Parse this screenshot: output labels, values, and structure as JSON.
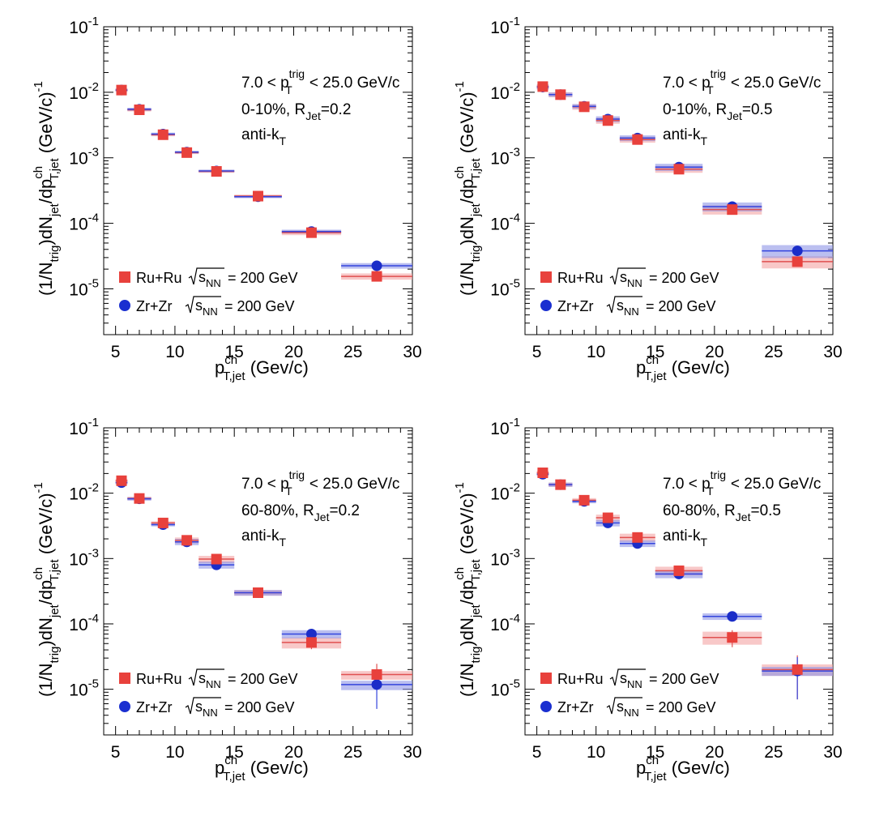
{
  "legend_entries": [
    {
      "label": "Ru+Ru",
      "energy": "= 200 GeV",
      "color": "#e8413c",
      "marker": "square"
    },
    {
      "label": "Zr+Zr",
      "energy": "= 200 GeV",
      "color": "#1a2fd0",
      "marker": "circle"
    }
  ],
  "colors": {
    "ru_marker": "#e8413c",
    "ru_band": "#f4a3a3",
    "ru_line": "#e05050",
    "zr_marker": "#1b2dc8",
    "zr_band": "#8d95e6",
    "zr_line": "#3344dd"
  },
  "chart_data": [
    {
      "type": "scatter",
      "xlabel": "p_T,jet^ch (Gev/c)",
      "ylabel": "(1/N_trig)dN_jet/dp_T,jet^ch (GeV/c)^-1",
      "xlim": [
        4,
        30
      ],
      "ylim": [
        2e-06,
        0.1
      ],
      "yscale": "log",
      "annotations": [
        "7.0 < p_T^trig < 25.0 GeV/c",
        "0-10%, R_Jet=0.2",
        "anti-k_T"
      ],
      "legend_placement": "bottom-left",
      "series": [
        {
          "name": "Ru+Ru",
          "x": [
            5.5,
            7.0,
            9.0,
            11.0,
            13.5,
            17.0,
            21.5,
            27.0
          ],
          "y": [
            0.0108,
            0.0054,
            0.00225,
            0.0012,
            0.00062,
            0.00026,
            7.2e-05,
            1.55e-05
          ],
          "x_bins": [
            [
              5,
              6
            ],
            [
              6,
              8
            ],
            [
              8,
              10
            ],
            [
              10,
              12
            ],
            [
              12,
              15
            ],
            [
              15,
              19
            ],
            [
              19,
              24
            ],
            [
              24,
              30
            ]
          ],
          "band_lo": [
            0.0102,
            0.0051,
            0.00213,
            0.00114,
            0.00059,
            0.000246,
            6.6e-05,
            1.38e-05
          ],
          "band_hi": [
            0.0114,
            0.0057,
            0.00237,
            0.00126,
            0.00065,
            0.000274,
            7.8e-05,
            1.72e-05
          ],
          "err_lo": [],
          "err_hi": []
        },
        {
          "name": "Zr+Zr",
          "x": [
            5.5,
            7.0,
            9.0,
            11.0,
            13.5,
            17.0,
            21.5,
            27.0
          ],
          "y": [
            0.0108,
            0.0055,
            0.0023,
            0.00122,
            0.00063,
            0.000255,
            7.5e-05,
            2.25e-05
          ],
          "x_bins": [
            [
              5,
              6
            ],
            [
              6,
              8
            ],
            [
              8,
              10
            ],
            [
              10,
              12
            ],
            [
              12,
              15
            ],
            [
              15,
              19
            ],
            [
              19,
              24
            ],
            [
              24,
              30
            ]
          ],
          "band_lo": [
            0.0102,
            0.0052,
            0.00218,
            0.00116,
            0.0006,
            0.000242,
            7e-05,
            2.03e-05
          ],
          "band_hi": [
            0.0114,
            0.0058,
            0.00242,
            0.00128,
            0.00066,
            0.000268,
            8e-05,
            2.47e-05
          ],
          "err_lo": [],
          "err_hi": []
        }
      ]
    },
    {
      "type": "scatter",
      "xlabel": "p_T,jet^ch (Gev/c)",
      "ylabel": "(1/N_trig)dN_jet/dp_T,jet^ch (GeV/c)^-1",
      "xlim": [
        4,
        30
      ],
      "ylim": [
        2e-06,
        0.1
      ],
      "yscale": "log",
      "annotations": [
        "7.0 < p_T^trig < 25.0 GeV/c",
        "0-10%, R_Jet=0.5",
        "anti-k_T"
      ],
      "legend_placement": "bottom-left",
      "series": [
        {
          "name": "Ru+Ru",
          "x": [
            5.5,
            7.0,
            9.0,
            11.0,
            13.5,
            17.0,
            21.5,
            27.0
          ],
          "y": [
            0.0122,
            0.0092,
            0.006,
            0.0037,
            0.0019,
            0.00067,
            0.000162,
            2.6e-05
          ],
          "x_bins": [
            [
              5,
              6
            ],
            [
              6,
              8
            ],
            [
              8,
              10
            ],
            [
              10,
              12
            ],
            [
              12,
              15
            ],
            [
              15,
              19
            ],
            [
              19,
              24
            ],
            [
              24,
              30
            ]
          ],
          "band_lo": [
            0.0112,
            0.0084,
            0.0054,
            0.0033,
            0.0017,
            0.00059,
            0.000136,
            2.05e-05
          ],
          "band_hi": [
            0.0132,
            0.01,
            0.0066,
            0.0041,
            0.0021,
            0.00075,
            0.000188,
            3.15e-05
          ],
          "err_lo": [],
          "err_hi": []
        },
        {
          "name": "Zr+Zr",
          "x": [
            5.5,
            7.0,
            9.0,
            11.0,
            13.5,
            17.0,
            21.5,
            27.0
          ],
          "y": [
            0.012,
            0.0092,
            0.0061,
            0.0039,
            0.002,
            0.00072,
            0.00018,
            3.8e-05
          ],
          "x_bins": [
            [
              5,
              6
            ],
            [
              6,
              8
            ],
            [
              8,
              10
            ],
            [
              10,
              12
            ],
            [
              12,
              15
            ],
            [
              15,
              19
            ],
            [
              19,
              24
            ],
            [
              24,
              30
            ]
          ],
          "band_lo": [
            0.011,
            0.0085,
            0.0056,
            0.0035,
            0.0018,
            0.00063,
            0.000152,
            2.95e-05
          ],
          "band_hi": [
            0.013,
            0.0099,
            0.0066,
            0.0043,
            0.0022,
            0.00081,
            0.000208,
            4.65e-05
          ],
          "err_lo": [],
          "err_hi": []
        }
      ]
    },
    {
      "type": "scatter",
      "xlabel": "p_T,jet^ch (Gev/c)",
      "ylabel": "(1/N_trig)dN_jet/dp_T,jet^ch (GeV/c)^-1",
      "xlim": [
        4,
        30
      ],
      "ylim": [
        2e-06,
        0.1
      ],
      "yscale": "log",
      "annotations": [
        "7.0 < p_T^trig < 25.0 GeV/c",
        "60-80%, R_Jet=0.2",
        "anti-k_T"
      ],
      "legend_placement": "bottom-left",
      "series": [
        {
          "name": "Ru+Ru",
          "x": [
            5.5,
            7.0,
            9.0,
            11.0,
            13.5,
            17.0,
            21.5,
            27.0
          ],
          "y": [
            0.0155,
            0.0083,
            0.0035,
            0.0019,
            0.00098,
            0.0003,
            5.2e-05,
            1.68e-05
          ],
          "x_bins": [
            [
              5,
              6
            ],
            [
              6,
              8
            ],
            [
              8,
              10
            ],
            [
              10,
              12
            ],
            [
              12,
              15
            ],
            [
              15,
              19
            ],
            [
              19,
              24
            ],
            [
              24,
              30
            ]
          ],
          "band_lo": [
            0.0145,
            0.0078,
            0.0033,
            0.0017,
            0.00085,
            0.00027,
            4.2e-05,
            1.4e-05
          ],
          "band_hi": [
            0.0165,
            0.0088,
            0.0037,
            0.0021,
            0.0011,
            0.00033,
            6.2e-05,
            1.9e-05
          ],
          "err_lo": [
            0.0149,
            0.008,
            0.0034,
            0.00182,
            0.00093,
            0.00029,
            4.1e-05,
            1.15e-05
          ],
          "err_hi": [
            0.0161,
            0.0086,
            0.0036,
            0.00198,
            0.00103,
            0.00031,
            6.3e-05,
            2.45e-05
          ]
        },
        {
          "name": "Zr+Zr",
          "x": [
            5.5,
            7.0,
            9.0,
            11.0,
            13.5,
            17.0,
            21.5,
            27.0
          ],
          "y": [
            0.0145,
            0.0082,
            0.0033,
            0.0018,
            0.0008,
            0.0003,
            7e-05,
            1.18e-05
          ],
          "x_bins": [
            [
              5,
              6
            ],
            [
              6,
              8
            ],
            [
              8,
              10
            ],
            [
              10,
              12
            ],
            [
              12,
              15
            ],
            [
              15,
              19
            ],
            [
              19,
              24
            ],
            [
              24,
              30
            ]
          ],
          "band_lo": [
            0.0136,
            0.0077,
            0.0031,
            0.0016,
            0.0007,
            0.00027,
            6e-05,
            9.7e-06
          ],
          "band_hi": [
            0.0154,
            0.0087,
            0.0035,
            0.002,
            0.0009,
            0.00033,
            8e-05,
            1.35e-05
          ],
          "err_lo": [
            0.0139,
            0.0079,
            0.0032,
            0.00173,
            0.00076,
            0.00029,
            6e-05,
            5e-06
          ],
          "err_hi": [
            0.0151,
            0.0085,
            0.0034,
            0.00187,
            0.00084,
            0.00031,
            8e-05,
            1.9e-05
          ]
        }
      ]
    },
    {
      "type": "scatter",
      "xlabel": "p_T,jet^ch (Gev/c)",
      "ylabel": "(1/N_trig)dN_jet/dp_T,jet^ch (GeV/c)^-1",
      "xlim": [
        4,
        30
      ],
      "ylim": [
        2e-06,
        0.1
      ],
      "yscale": "log",
      "annotations": [
        "7.0 < p_T^trig < 25.0 GeV/c",
        "60-80%, R_Jet=0.5",
        "anti-k_T"
      ],
      "legend_placement": "bottom-left",
      "series": [
        {
          "name": "Ru+Ru",
          "x": [
            5.5,
            7.0,
            9.0,
            11.0,
            13.5,
            17.0,
            21.5,
            27.0
          ],
          "y": [
            0.0205,
            0.0135,
            0.0078,
            0.0042,
            0.0021,
            0.00065,
            6.2e-05,
            2e-05
          ],
          "x_bins": [
            [
              5,
              6
            ],
            [
              6,
              8
            ],
            [
              8,
              10
            ],
            [
              10,
              12
            ],
            [
              12,
              15
            ],
            [
              15,
              19
            ],
            [
              19,
              24
            ],
            [
              24,
              30
            ]
          ],
          "band_lo": [
            0.019,
            0.0125,
            0.0072,
            0.0037,
            0.0018,
            0.00055,
            4.8e-05,
            1.6e-05
          ],
          "band_hi": [
            0.022,
            0.0145,
            0.0084,
            0.0047,
            0.0024,
            0.00075,
            7.6e-05,
            2.4e-05
          ],
          "err_lo": [
            0.0196,
            0.0129,
            0.0074,
            0.0039,
            0.00195,
            0.0006,
            4.4e-05,
            7e-06
          ],
          "err_hi": [
            0.0214,
            0.0141,
            0.0082,
            0.0045,
            0.00225,
            0.0007,
            8e-05,
            3.3e-05
          ]
        },
        {
          "name": "Zr+Zr",
          "x": [
            5.5,
            7.0,
            9.0,
            11.0,
            13.5,
            17.0,
            21.5,
            27.0
          ],
          "y": [
            0.0195,
            0.0135,
            0.0075,
            0.0035,
            0.0017,
            0.00058,
            0.00013,
            1.9e-05
          ],
          "x_bins": [
            [
              5,
              6
            ],
            [
              6,
              8
            ],
            [
              8,
              10
            ],
            [
              10,
              12
            ],
            [
              12,
              15
            ],
            [
              15,
              19
            ],
            [
              19,
              24
            ],
            [
              24,
              30
            ]
          ],
          "band_lo": [
            0.0182,
            0.0125,
            0.007,
            0.0031,
            0.0015,
            0.0005,
            0.000115,
            1.6e-05
          ],
          "band_hi": [
            0.0208,
            0.0145,
            0.008,
            0.0039,
            0.0019,
            0.00066,
            0.000145,
            2.2e-05
          ],
          "err_lo": [
            0.0188,
            0.013,
            0.0072,
            0.0033,
            0.0016,
            0.00055,
            0.00011,
            7e-06
          ],
          "err_hi": [
            0.0202,
            0.014,
            0.0078,
            0.0037,
            0.0018,
            0.00061,
            0.00015,
            3.1e-05
          ]
        }
      ]
    }
  ]
}
